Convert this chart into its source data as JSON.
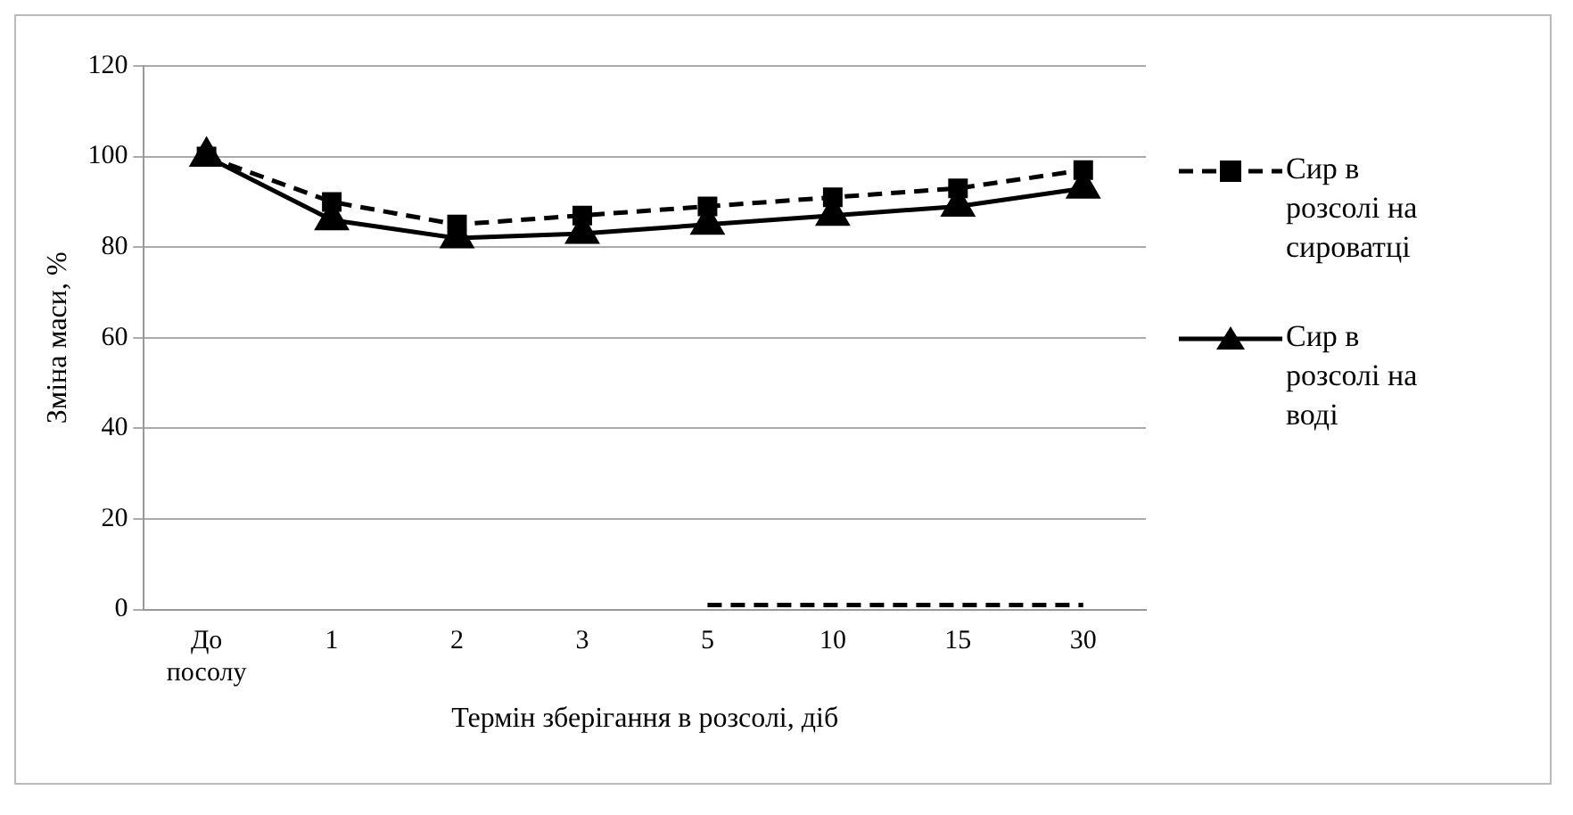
{
  "chart_data": {
    "type": "line",
    "xlabel": "Термін зберігання в розсолі, діб",
    "ylabel": "Зміна маси, %",
    "categories": [
      "До посолу",
      "1",
      "2",
      "3",
      "5",
      "10",
      "15",
      "30"
    ],
    "series": [
      {
        "name": "Сир в розсолі на сироватці",
        "color": "#000000",
        "values": [
          100,
          90,
          85,
          87,
          89,
          91,
          93,
          97
        ],
        "marker": "square",
        "line_style": "dashed"
      },
      {
        "name": "Сир в розсолі на воді",
        "color": "#000000",
        "values": [
          100,
          86,
          82,
          83,
          85,
          87,
          89,
          93
        ],
        "marker": "triangle",
        "line_style": "solid"
      },
      {
        "color": "#000000",
        "values": [
          null,
          null,
          null,
          null,
          1,
          1,
          1,
          1
        ],
        "marker": "none",
        "line_style": "dashed"
      }
    ],
    "ylim": [
      0,
      120
    ],
    "yticks": [
      0,
      20,
      40,
      60,
      80,
      100,
      120
    ],
    "grid": "y",
    "legend": "right"
  }
}
